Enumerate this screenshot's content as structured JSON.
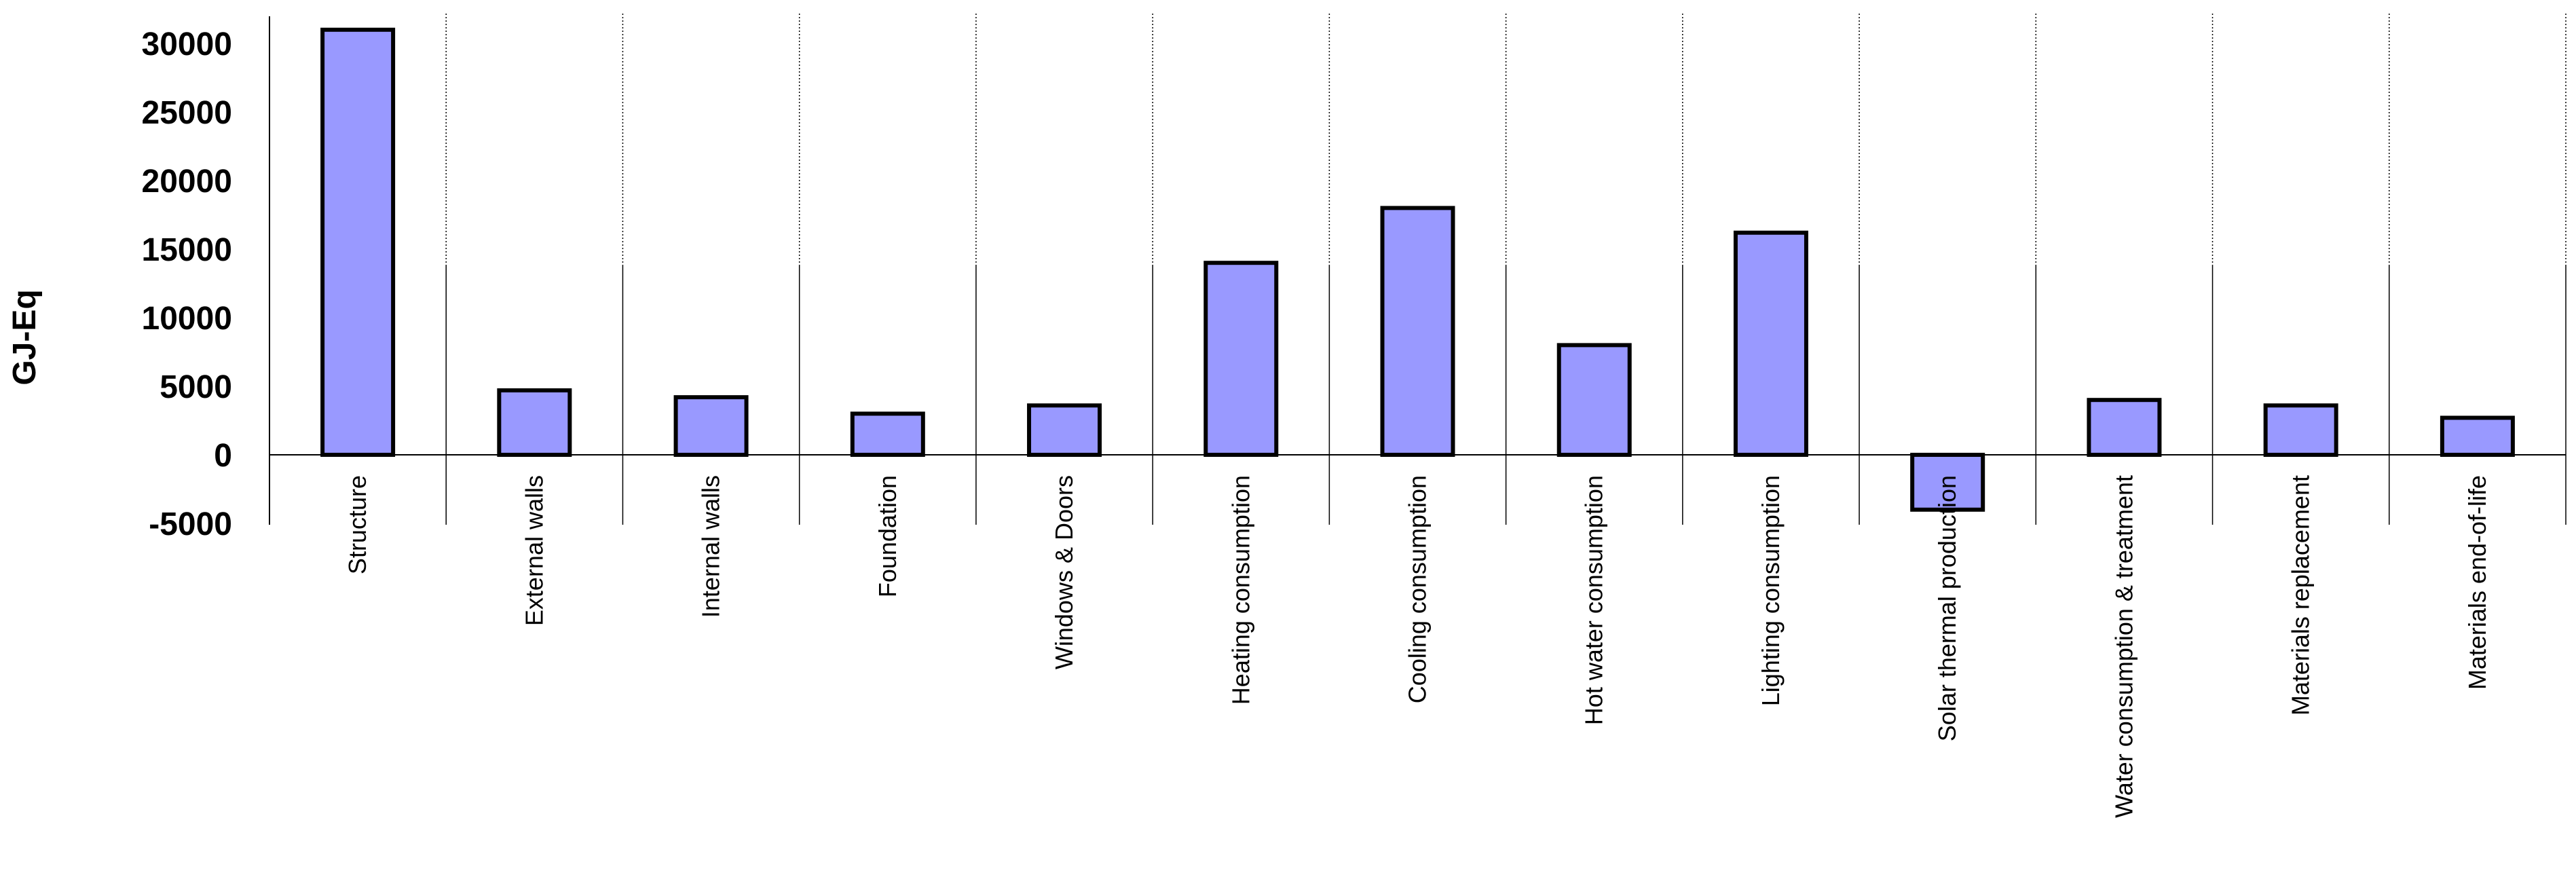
{
  "chart_data": {
    "type": "bar",
    "ylabel": "GJ-Eq",
    "xlabel": "",
    "ylim": [
      -5000,
      32000
    ],
    "yticks": [
      30000,
      25000,
      20000,
      15000,
      10000,
      5000,
      0,
      -5000
    ],
    "grid": "vertical dotted separators between categories",
    "legend": "none",
    "bar_color": "#9999ff",
    "bar_edge_color": "#000000",
    "categories": [
      "Structure",
      "External walls",
      "Internal walls",
      "Foundation",
      "Windows & Doors",
      "Heating consumption",
      "Cooling consumption",
      "Hot water consumption",
      "Lighting consumption",
      "Solar thermal production",
      "Water consumption & treatment",
      "Materials replacement",
      "Materials end-of-life"
    ],
    "values": [
      31000,
      4700,
      4200,
      3000,
      3600,
      14000,
      18000,
      8000,
      16200,
      -4000,
      4000,
      3600,
      2700
    ]
  }
}
